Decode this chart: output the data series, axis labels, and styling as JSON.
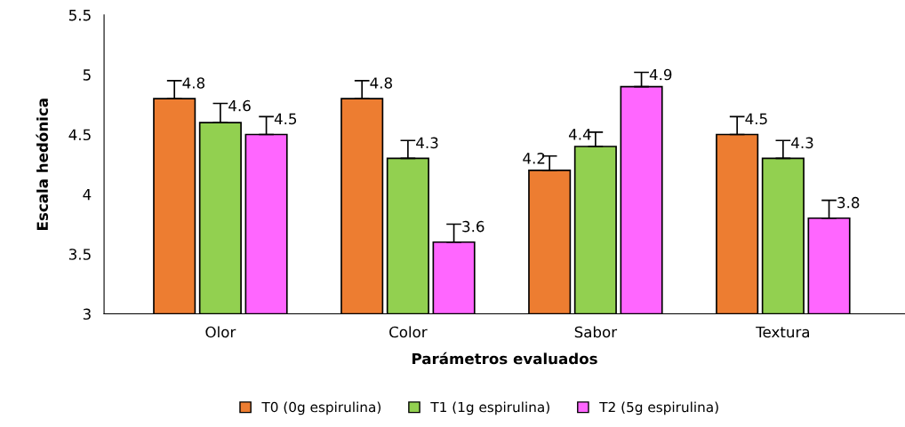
{
  "chart_data": {
    "type": "bar",
    "xlabel": "Parámetros evaluados",
    "ylabel": "Escala hedónica",
    "categories": [
      "Olor",
      "Color",
      "Sabor",
      "Textura"
    ],
    "series": [
      {
        "name": "T0 (0g espirulina)",
        "color": "#ed7d31",
        "values": [
          4.8,
          4.8,
          4.2,
          4.5
        ],
        "errors": [
          [
            4.8,
            4.95
          ],
          [
            4.8,
            4.95
          ],
          [
            4.2,
            4.32
          ],
          [
            4.5,
            4.65
          ]
        ]
      },
      {
        "name": "T1 (1g espirulina)",
        "color": "#92d050",
        "values": [
          4.6,
          4.3,
          4.4,
          4.3
        ],
        "errors": [
          [
            4.6,
            4.76
          ],
          [
            4.3,
            4.45
          ],
          [
            4.4,
            4.52
          ],
          [
            4.3,
            4.45
          ]
        ]
      },
      {
        "name": "T2 (5g espirulina)",
        "color": "#ff66ff",
        "values": [
          4.5,
          3.6,
          4.9,
          3.8
        ],
        "errors": [
          [
            4.5,
            4.65
          ],
          [
            3.6,
            3.75
          ],
          [
            4.9,
            5.02
          ],
          [
            3.8,
            3.95
          ]
        ]
      }
    ],
    "ylim": [
      3,
      5.5
    ],
    "yticks": [
      3,
      3.5,
      4,
      4.5,
      5,
      5.5
    ],
    "grid": false,
    "legend": "bottom",
    "data_labels": true
  }
}
